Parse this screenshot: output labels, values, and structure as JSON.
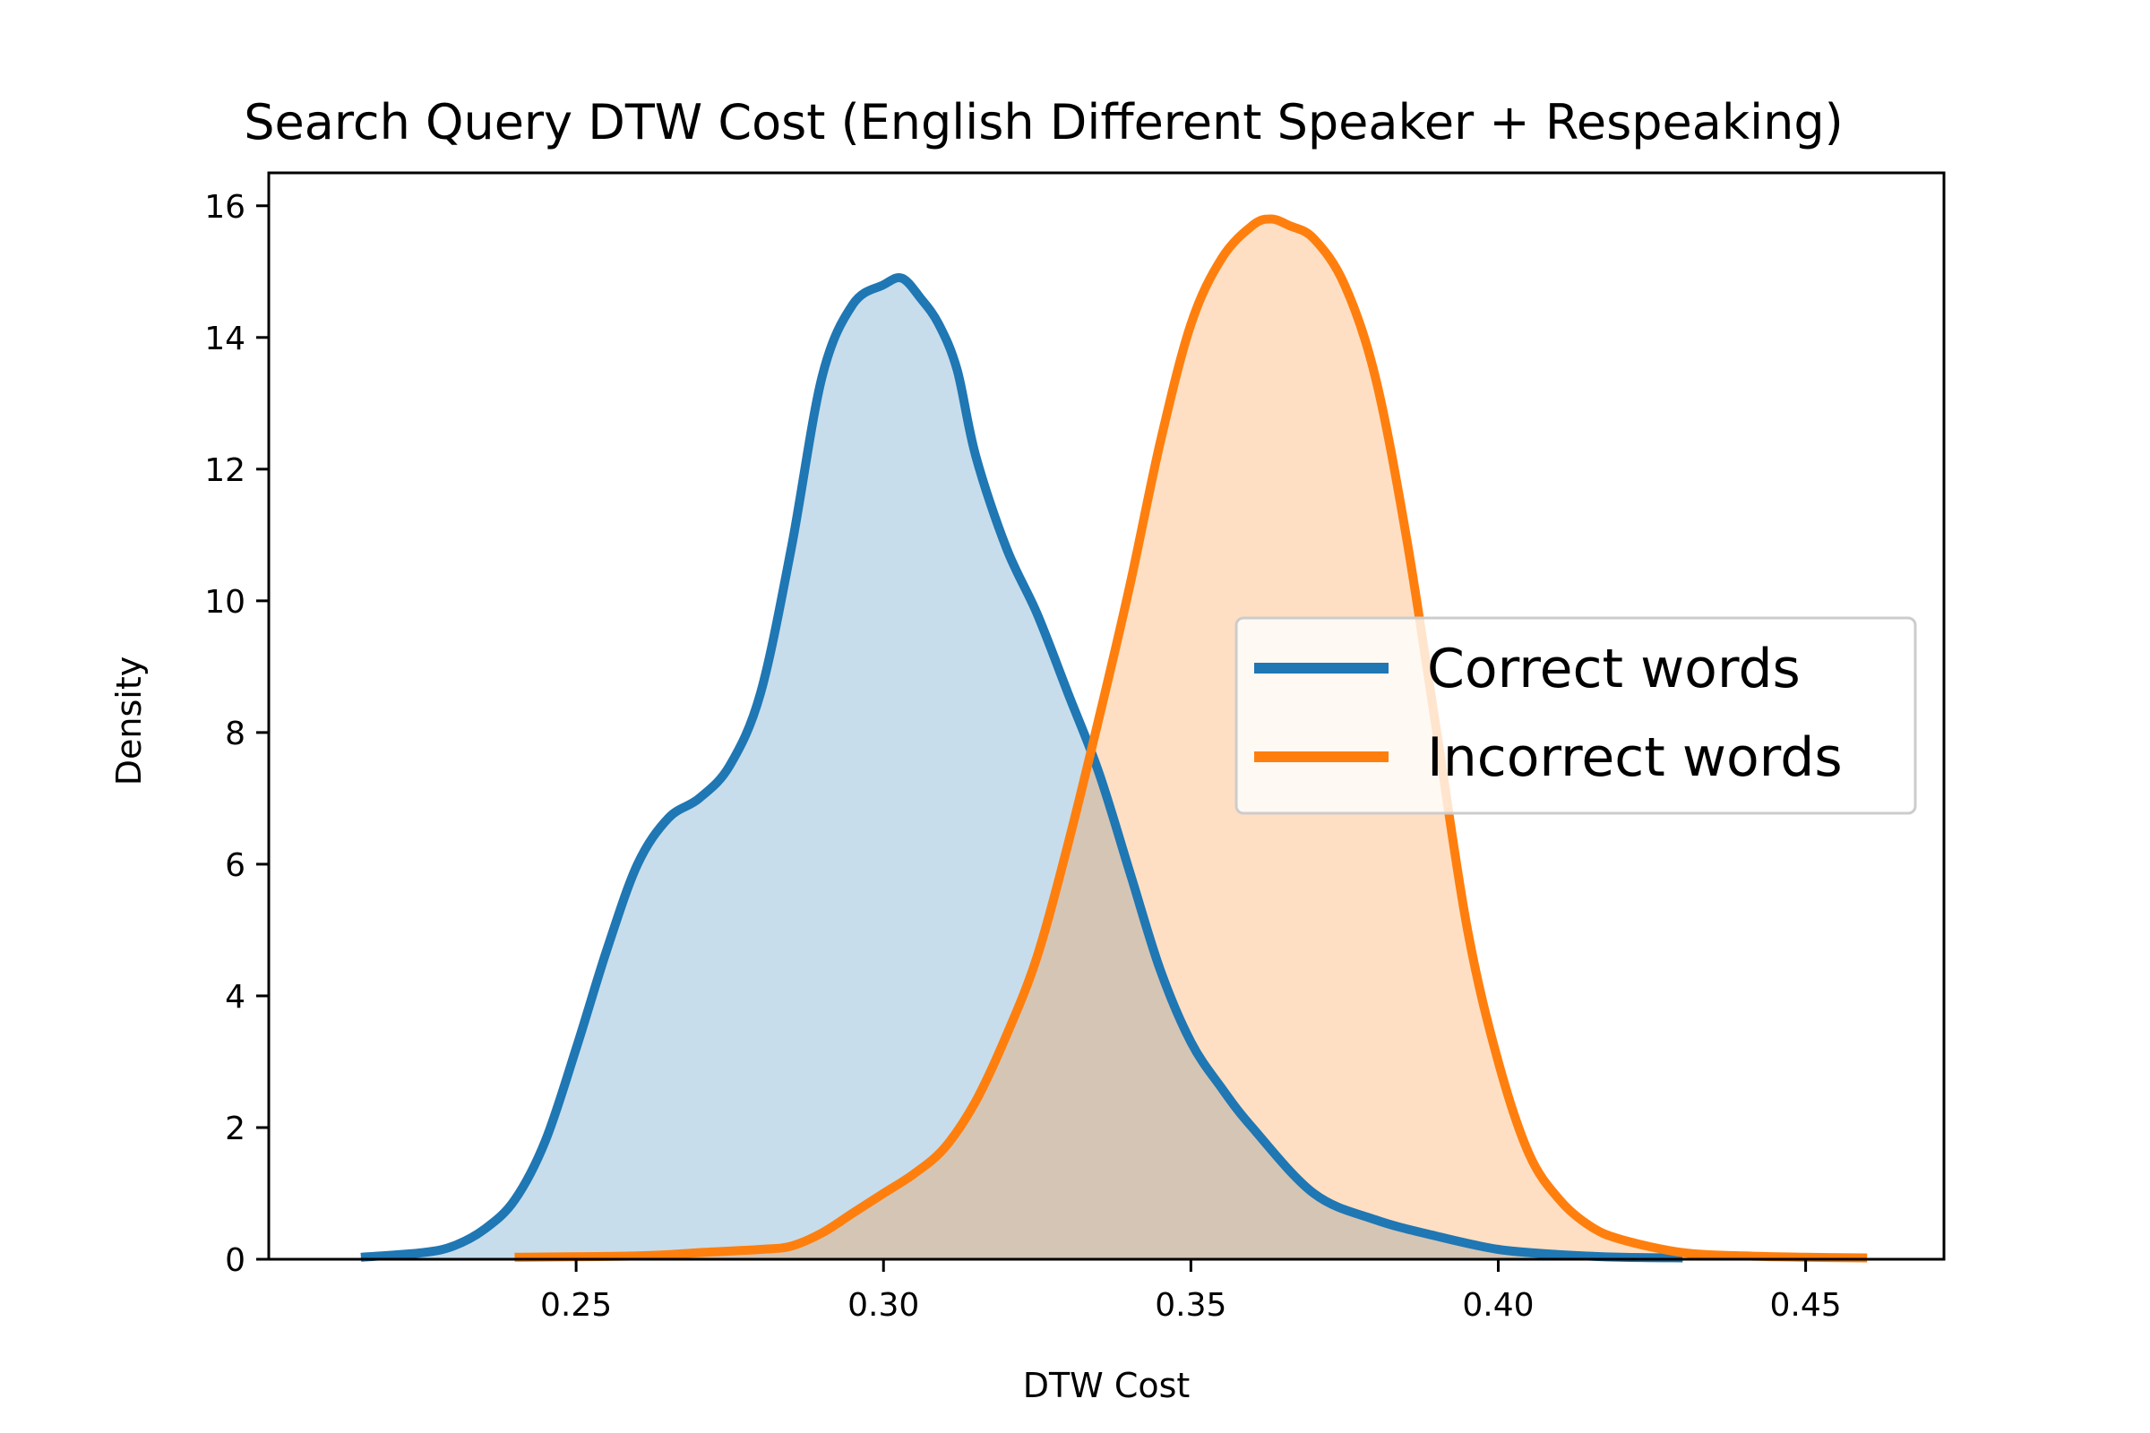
{
  "chart_data": {
    "type": "area",
    "title": "Search Query DTW Cost (English Different Speaker + Respeaking)",
    "xlabel": "DTW Cost",
    "ylabel": "Density",
    "xlim": [
      0.2,
      0.4725
    ],
    "ylim": [
      0,
      16.5
    ],
    "xticks": [
      0.25,
      0.3,
      0.35,
      0.4,
      0.45
    ],
    "xtick_labels": [
      "0.25",
      "0.30",
      "0.35",
      "0.40",
      "0.45"
    ],
    "yticks": [
      0,
      2,
      4,
      6,
      8,
      10,
      12,
      14,
      16
    ],
    "ytick_labels": [
      "0",
      "2",
      "4",
      "6",
      "8",
      "10",
      "12",
      "14",
      "16"
    ],
    "grid": false,
    "legend_position": "center-right",
    "series": [
      {
        "name": "Correct words",
        "color": "#1f77b4",
        "fill_color": "#1f77b4",
        "x": [
          0.215,
          0.225,
          0.23,
          0.235,
          0.24,
          0.245,
          0.25,
          0.255,
          0.26,
          0.265,
          0.27,
          0.275,
          0.28,
          0.285,
          0.29,
          0.295,
          0.3,
          0.303,
          0.306,
          0.309,
          0.312,
          0.315,
          0.32,
          0.325,
          0.33,
          0.335,
          0.34,
          0.345,
          0.35,
          0.355,
          0.36,
          0.37,
          0.38,
          0.39,
          0.4,
          0.41,
          0.42,
          0.43
        ],
        "y": [
          0.03,
          0.1,
          0.2,
          0.45,
          0.9,
          1.8,
          3.2,
          4.7,
          6.0,
          6.7,
          7.0,
          7.5,
          8.6,
          10.8,
          13.4,
          14.5,
          14.8,
          14.9,
          14.6,
          14.2,
          13.5,
          12.2,
          10.8,
          9.8,
          8.6,
          7.4,
          5.9,
          4.4,
          3.3,
          2.6,
          2.0,
          1.0,
          0.6,
          0.35,
          0.15,
          0.07,
          0.03,
          0.02
        ]
      },
      {
        "name": "Incorrect words",
        "color": "#ff7f0e",
        "fill_color": "#ff7f0e",
        "x": [
          0.24,
          0.26,
          0.27,
          0.28,
          0.285,
          0.29,
          0.295,
          0.3,
          0.305,
          0.31,
          0.315,
          0.32,
          0.325,
          0.33,
          0.335,
          0.34,
          0.345,
          0.35,
          0.355,
          0.36,
          0.363,
          0.366,
          0.37,
          0.375,
          0.38,
          0.385,
          0.39,
          0.395,
          0.4,
          0.405,
          0.41,
          0.415,
          0.42,
          0.43,
          0.44,
          0.45,
          0.46
        ],
        "y": [
          0.03,
          0.05,
          0.1,
          0.15,
          0.2,
          0.4,
          0.7,
          1.0,
          1.3,
          1.7,
          2.4,
          3.4,
          4.6,
          6.3,
          8.2,
          10.2,
          12.4,
          14.2,
          15.2,
          15.7,
          15.8,
          15.7,
          15.5,
          14.8,
          13.4,
          11.0,
          8.0,
          5.0,
          3.0,
          1.6,
          0.9,
          0.5,
          0.3,
          0.1,
          0.05,
          0.03,
          0.02
        ]
      }
    ]
  }
}
